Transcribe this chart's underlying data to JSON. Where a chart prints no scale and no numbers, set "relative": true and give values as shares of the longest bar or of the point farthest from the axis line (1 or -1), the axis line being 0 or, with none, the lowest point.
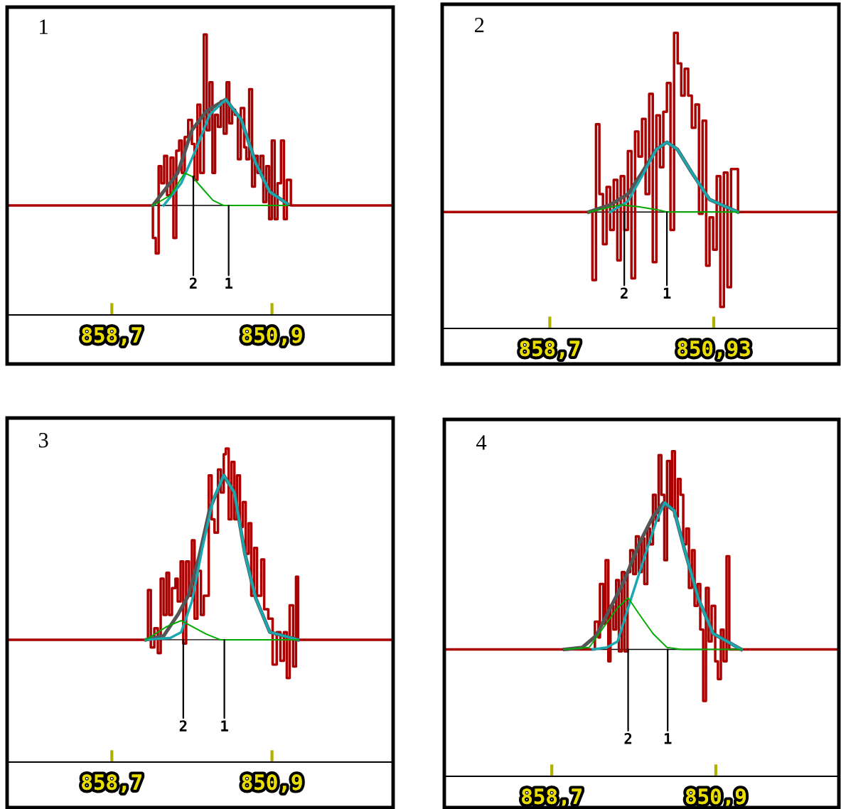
{
  "chart_data": [
    {
      "type": "step",
      "title": "1",
      "relative": true,
      "xlim": [
        863.8,
        845.0
      ],
      "xticks": [
        {
          "value": 858.7,
          "label": "858,7"
        },
        {
          "value": 850.9,
          "label": "850,9"
        }
      ],
      "annotations": [
        {
          "text": "2",
          "x": 854.73,
          "y": 0.17
        },
        {
          "text": "1",
          "x": 853.01,
          "y": 0
        }
      ],
      "series": [
        {
          "color": "#aa0000",
          "x": [
            863.8,
            856.7,
            856.56,
            856.42,
            856.29,
            856.15,
            856.01,
            855.84,
            855.7,
            855.56,
            855.42,
            855.29,
            855.15,
            854.98,
            854.8,
            854.67,
            854.53,
            854.39,
            854.22,
            854.08,
            853.94,
            853.8,
            853.67,
            853.53,
            853.39,
            853.25,
            853.11,
            852.98,
            852.84,
            852.7,
            852.56,
            852.42,
            852.25,
            852.15,
            852.01,
            851.87,
            851.73,
            851.6,
            851.46,
            851.32,
            851.18,
            851.04,
            850.91,
            850.77,
            850.63,
            850.46,
            850.32,
            850.18,
            849.98,
            845.0
          ],
          "values": [
            0,
            -0.19,
            -0.28,
            0.23,
            0.13,
            0.29,
            0.06,
            0.28,
            -0.19,
            0.32,
            0.38,
            0.19,
            0.4,
            0.5,
            0.36,
            0.15,
            0.59,
            0.19,
            1.0,
            0.44,
            0.72,
            0.19,
            0.53,
            0.46,
            0.61,
            0.42,
            0.72,
            0.48,
            0.56,
            0.53,
            0.27,
            0.57,
            0.34,
            0.27,
            0.68,
            0.11,
            0.29,
            0.19,
            0.29,
            0.02,
            0.23,
            -0.08,
            0.38,
            -0.08,
            0.13,
            0.38,
            -0.08,
            0.15,
            0,
            0
          ]
        },
        {
          "type": "line",
          "color": "#555555",
          "x": [
            856.7,
            855.49,
            854.8,
            854.11,
            853.15,
            852.39,
            851.7,
            851.01,
            850.15
          ],
          "values": [
            0,
            0.19,
            0.44,
            0.55,
            0.62,
            0.5,
            0.25,
            0.08,
            0.01
          ]
        },
        {
          "type": "line",
          "color": "#1aa8b0",
          "x": [
            856.18,
            855.32,
            854.63,
            853.94,
            853.15,
            852.39,
            851.7,
            851.01,
            850.15
          ],
          "values": [
            0,
            0.13,
            0.32,
            0.53,
            0.62,
            0.5,
            0.25,
            0.08,
            0.01
          ]
        },
        {
          "type": "line",
          "color": "#00aa00",
          "x": [
            856.7,
            855.84,
            855.15,
            854.8,
            854.29,
            853.77,
            853.25,
            850.15
          ],
          "values": [
            0,
            0.06,
            0.19,
            0.17,
            0.1,
            0.03,
            0,
            0
          ]
        }
      ]
    },
    {
      "type": "step",
      "title": "2",
      "relative": true,
      "xlim": [
        863.8,
        845.0
      ],
      "xticks": [
        {
          "value": 858.7,
          "label": "858,7"
        },
        {
          "value": 850.93,
          "label": "850,93"
        }
      ],
      "annotations": [
        {
          "text": "2",
          "x": 855.17,
          "y": 0
        },
        {
          "text": "1",
          "x": 853.15,
          "y": 0
        }
      ],
      "series": [
        {
          "color": "#aa0000",
          "x": [
            863.8,
            856.68,
            856.51,
            856.35,
            856.18,
            856.01,
            855.84,
            855.67,
            855.5,
            855.34,
            855.17,
            855.0,
            854.83,
            854.66,
            854.5,
            854.33,
            854.16,
            853.99,
            853.82,
            853.65,
            853.48,
            853.32,
            853.15,
            852.98,
            852.81,
            852.64,
            852.47,
            852.31,
            852.14,
            851.97,
            851.8,
            851.63,
            851.46,
            851.29,
            851.13,
            850.96,
            850.79,
            850.62,
            850.45,
            850.28,
            850.11,
            849.78,
            845.0
          ],
          "values": [
            0,
            -0.38,
            0.49,
            0.1,
            -0.18,
            0.14,
            -0.1,
            0.18,
            -0.27,
            0.2,
            -0.1,
            0.34,
            -0.37,
            0.45,
            0.31,
            0.52,
            0.1,
            0.66,
            -0.28,
            0.54,
            0.25,
            0.56,
            0.72,
            -0.1,
            1.0,
            0.83,
            0.65,
            0.8,
            0.65,
            0.47,
            0.6,
            -0.01,
            0.51,
            -0.3,
            -0.03,
            -0.21,
            0.2,
            -0.53,
            0.22,
            -0.42,
            0.24,
            0,
            0
          ]
        },
        {
          "type": "line",
          "color": "#555555",
          "x": [
            856.85,
            855.84,
            855.0,
            854.33,
            853.65,
            853.15,
            852.65,
            851.97,
            851.13,
            849.79
          ],
          "values": [
            0,
            0.04,
            0.1,
            0.22,
            0.35,
            0.39,
            0.35,
            0.22,
            0.07,
            0
          ]
        },
        {
          "type": "line",
          "color": "#1aa8b0",
          "x": [
            855.84,
            855.0,
            854.33,
            853.65,
            853.15,
            852.65,
            851.97,
            851.13,
            849.79
          ],
          "values": [
            0,
            0.06,
            0.2,
            0.35,
            0.39,
            0.35,
            0.22,
            0.07,
            0
          ]
        },
        {
          "type": "line",
          "color": "#00aa00",
          "x": [
            856.85,
            855.34,
            854.5,
            853.49,
            853.15,
            849.79
          ],
          "values": [
            0,
            0.04,
            0.03,
            0.01,
            0,
            0
          ]
        }
      ]
    },
    {
      "type": "step",
      "title": "3",
      "relative": true,
      "xlim": [
        863.8,
        845.0
      ],
      "xticks": [
        {
          "value": 858.7,
          "label": "858,7"
        },
        {
          "value": 850.9,
          "label": "850,9"
        }
      ],
      "annotations": [
        {
          "text": "2",
          "x": 855.22,
          "y": 0
        },
        {
          "text": "1",
          "x": 853.22,
          "y": 0
        }
      ],
      "series": [
        {
          "color": "#aa0000",
          "x": [
            863.8,
            857.04,
            856.94,
            856.8,
            856.63,
            856.46,
            856.32,
            856.18,
            856.04,
            855.91,
            855.77,
            855.6,
            855.49,
            855.35,
            855.22,
            855.08,
            854.94,
            854.8,
            854.67,
            854.53,
            854.36,
            854.22,
            853.98,
            853.84,
            853.7,
            853.53,
            853.39,
            853.25,
            853.15,
            853.01,
            852.87,
            852.73,
            852.6,
            852.46,
            852.32,
            852.18,
            852.04,
            851.91,
            851.77,
            851.63,
            851.42,
            851.28,
            851.08,
            850.87,
            850.67,
            850.49,
            850.32,
            850.18,
            850.04,
            849.87,
            849.73,
            849.63,
            845.0
          ],
          "values": [
            0,
            0,
            0.26,
            -0.04,
            0.06,
            -0.07,
            0.32,
            0.13,
            0.35,
            0.13,
            0.27,
            0.32,
            0.2,
            0.41,
            -0.02,
            0.41,
            0.23,
            0.52,
            0.11,
            0.36,
            0.13,
            0.23,
            0.86,
            0.63,
            0.56,
            0.89,
            0.77,
            0.97,
            1.0,
            0.63,
            0.93,
            0.63,
            0.86,
            0.59,
            0.72,
            0.45,
            0.61,
            0.23,
            0.48,
            0.23,
            0.42,
            0.16,
            0.11,
            -0.13,
            0.04,
            -0.11,
            0.04,
            -0.2,
            0.18,
            -0.14,
            0.33,
            0,
            0
          ]
        },
        {
          "type": "line",
          "color": "#555555",
          "x": [
            857.04,
            856.18,
            855.49,
            854.98,
            854.46,
            853.94,
            853.25,
            852.73,
            852.22,
            851.7,
            851.01,
            849.63
          ],
          "values": [
            0,
            0.02,
            0.13,
            0.23,
            0.43,
            0.68,
            0.86,
            0.77,
            0.45,
            0.22,
            0.04,
            0
          ]
        },
        {
          "type": "line",
          "color": "#1aa8b0",
          "x": [
            857.04,
            855.84,
            855.32,
            854.8,
            854.29,
            853.77,
            853.25,
            852.73,
            852.22,
            851.7,
            851.01,
            849.63
          ],
          "values": [
            0,
            0.01,
            0.04,
            0.2,
            0.48,
            0.73,
            0.86,
            0.77,
            0.45,
            0.22,
            0.04,
            0
          ]
        },
        {
          "type": "line",
          "color": "#00aa00",
          "x": [
            857.04,
            856.01,
            855.32,
            854.8,
            854.11,
            853.42,
            849.63
          ],
          "values": [
            0,
            0.07,
            0.1,
            0.07,
            0.03,
            0,
            0
          ]
        }
      ]
    },
    {
      "type": "step",
      "title": "4",
      "relative": true,
      "xlim": [
        863.81,
        845.05
      ],
      "xticks": [
        {
          "value": 858.7,
          "label": "858,7"
        },
        {
          "value": 850.9,
          "label": "850,9"
        }
      ],
      "annotations": [
        {
          "text": "2",
          "x": 855.07,
          "y": 0
        },
        {
          "text": "1",
          "x": 853.19,
          "y": 0
        }
      ],
      "series": [
        {
          "color": "#aa0000",
          "x": [
            863.81,
            856.75,
            856.65,
            856.48,
            856.41,
            856.25,
            856.14,
            856.01,
            855.91,
            855.77,
            855.64,
            855.51,
            855.37,
            855.24,
            855.1,
            854.97,
            854.83,
            854.7,
            854.56,
            854.43,
            854.3,
            854.16,
            854.03,
            853.89,
            853.76,
            853.62,
            853.49,
            853.35,
            853.22,
            853.08,
            852.98,
            852.85,
            852.71,
            852.58,
            852.45,
            852.31,
            852.18,
            852.04,
            851.91,
            851.77,
            851.64,
            851.5,
            851.37,
            851.24,
            851.1,
            850.93,
            850.8,
            850.66,
            850.53,
            850.39,
            850.26,
            845.05
          ],
          "values": [
            0,
            0,
            0.14,
            0.06,
            0.33,
            0.13,
            0.45,
            -0.06,
            0.22,
            0.1,
            0.35,
            -0.01,
            0.39,
            -0.01,
            0.39,
            0.5,
            0.38,
            0.57,
            0.39,
            0.56,
            0.33,
            0.61,
            0.53,
            0.78,
            0.65,
            0.98,
            0.78,
            0.45,
            0.95,
            0.72,
            1.0,
            0.67,
            0.86,
            0.78,
            0.53,
            0.61,
            0.31,
            0.5,
            0.22,
            0.33,
            0.1,
            -0.26,
            0.31,
            0.04,
            0.22,
            -0.06,
            -0.15,
            0.1,
            -0.06,
            0.47,
            0,
            0
          ]
        },
        {
          "type": "line",
          "color": "#555555",
          "x": [
            858.09,
            857.25,
            856.58,
            855.91,
            855.24,
            854.56,
            853.89,
            853.39,
            852.88,
            852.38,
            851.71,
            851.03,
            849.69
          ],
          "values": [
            0,
            0.01,
            0.07,
            0.21,
            0.35,
            0.53,
            0.67,
            0.74,
            0.7,
            0.5,
            0.25,
            0.08,
            0
          ]
        },
        {
          "type": "line",
          "color": "#1aa8b0",
          "x": [
            856.75,
            856.08,
            855.57,
            855.07,
            854.4,
            853.72,
            853.32,
            852.88,
            852.38,
            851.71,
            851.03,
            849.69
          ],
          "values": [
            0,
            0.01,
            0.04,
            0.21,
            0.43,
            0.65,
            0.74,
            0.7,
            0.5,
            0.25,
            0.08,
            0
          ]
        },
        {
          "type": "line",
          "color": "#00aa00",
          "x": [
            858.09,
            856.92,
            856.25,
            855.57,
            855.07,
            854.56,
            853.89,
            853.22,
            852.55,
            849.69
          ],
          "values": [
            0,
            0.01,
            0.11,
            0.21,
            0.26,
            0.18,
            0.08,
            0.01,
            0,
            0
          ]
        }
      ]
    }
  ]
}
